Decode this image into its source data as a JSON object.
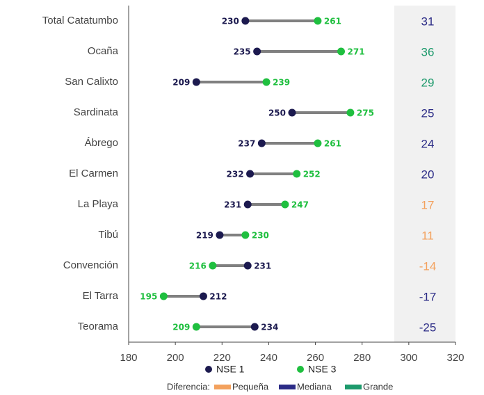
{
  "chart_data": {
    "type": "dumbbell",
    "categories": [
      "Total Catatumbo",
      "Ocaña",
      "San Calixto",
      "Sardinata",
      "Ábrego",
      "El Carmen",
      "La Playa",
      "Tibú",
      "Convención",
      "El Tarra",
      "Teorama"
    ],
    "series": [
      {
        "name": "NSE 1",
        "color": "#1c1a4f",
        "values": [
          230,
          235,
          209,
          250,
          237,
          232,
          231,
          219,
          231,
          212,
          234
        ]
      },
      {
        "name": "NSE 3",
        "color": "#1fbf3f",
        "values": [
          261,
          271,
          239,
          275,
          261,
          252,
          247,
          230,
          216,
          195,
          209
        ]
      }
    ],
    "differences": [
      31,
      36,
      29,
      25,
      24,
      20,
      17,
      11,
      -14,
      -17,
      -25
    ],
    "difference_colors": [
      "#2b2b86",
      "#1d9a6c",
      "#1d9a6c",
      "#2b2b86",
      "#2b2b86",
      "#2b2b86",
      "#f3a15d",
      "#f3a15d",
      "#f3a15d",
      "#2b2b86",
      "#2b2b86"
    ],
    "difference_legend": {
      "title": "Diferencia:",
      "items": [
        {
          "name": "Pequeña",
          "color": "#f3a15d"
        },
        {
          "name": "Mediana",
          "color": "#2b2b86"
        },
        {
          "name": "Grande",
          "color": "#1d9a6c"
        }
      ]
    },
    "xlim": [
      180,
      320
    ],
    "xticks": [
      180,
      200,
      220,
      240,
      260,
      280,
      300,
      320
    ]
  }
}
